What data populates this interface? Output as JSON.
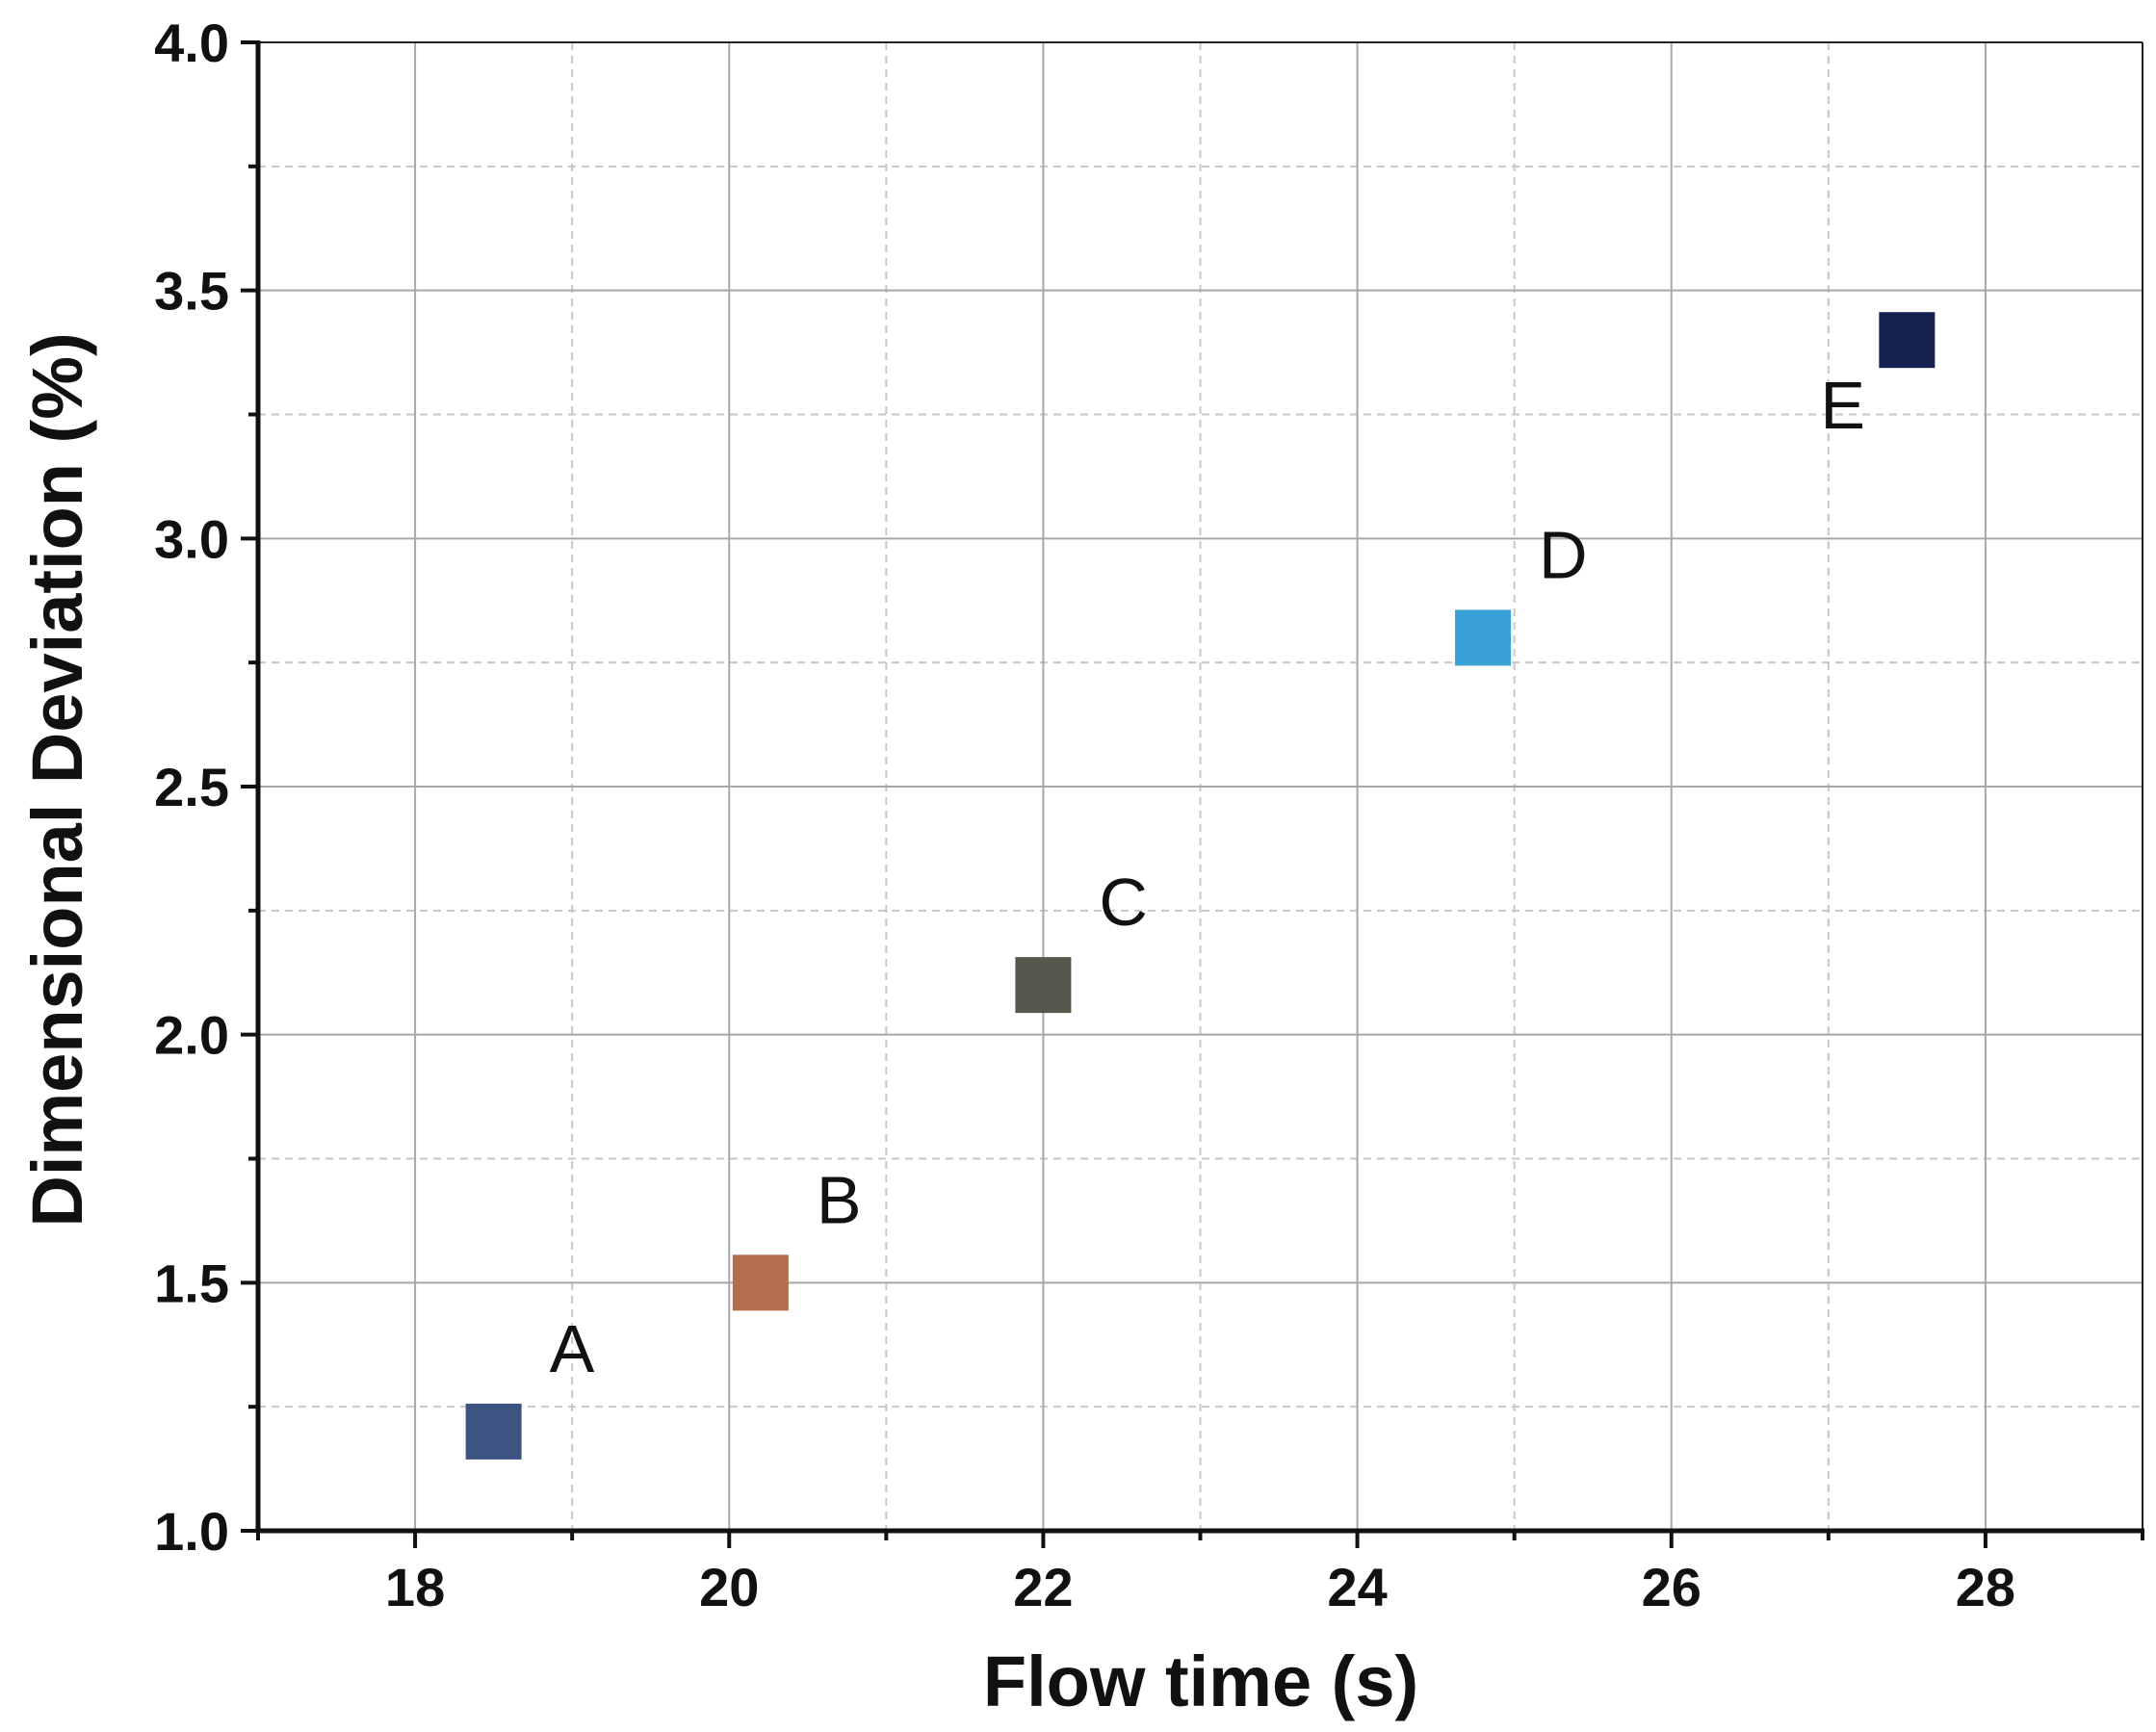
{
  "chart_data": {
    "type": "scatter",
    "title": "",
    "xlabel": "Flow time (s)",
    "ylabel": "Dimensional Deviation (%)",
    "xlim": [
      17,
      29
    ],
    "ylim": [
      1.0,
      4.0
    ],
    "x_ticks": [
      18,
      20,
      22,
      24,
      26,
      28
    ],
    "y_ticks": [
      1.0,
      1.5,
      2.0,
      2.5,
      3.0,
      3.5,
      4.0
    ],
    "x_tick_labels": [
      "18",
      "20",
      "22",
      "24",
      "26",
      "28"
    ],
    "y_tick_labels": [
      "1.0",
      "1.5",
      "2.0",
      "2.5",
      "3.0",
      "3.5",
      "4.0"
    ],
    "grid": true,
    "marker": "square",
    "points": [
      {
        "label": "A",
        "x": 18.5,
        "y": 1.2,
        "color": "#3D5482",
        "label_position": "upper-right"
      },
      {
        "label": "B",
        "x": 20.2,
        "y": 1.5,
        "color": "#B36E4D",
        "label_position": "upper-right"
      },
      {
        "label": "C",
        "x": 22.0,
        "y": 2.1,
        "color": "#55594B",
        "label_position": "upper-right"
      },
      {
        "label": "D",
        "x": 24.8,
        "y": 2.8,
        "color": "#3AA1D6",
        "label_position": "upper-right"
      },
      {
        "label": "E",
        "x": 27.5,
        "y": 3.4,
        "color": "#16214F",
        "label_position": "lower-left"
      }
    ]
  }
}
